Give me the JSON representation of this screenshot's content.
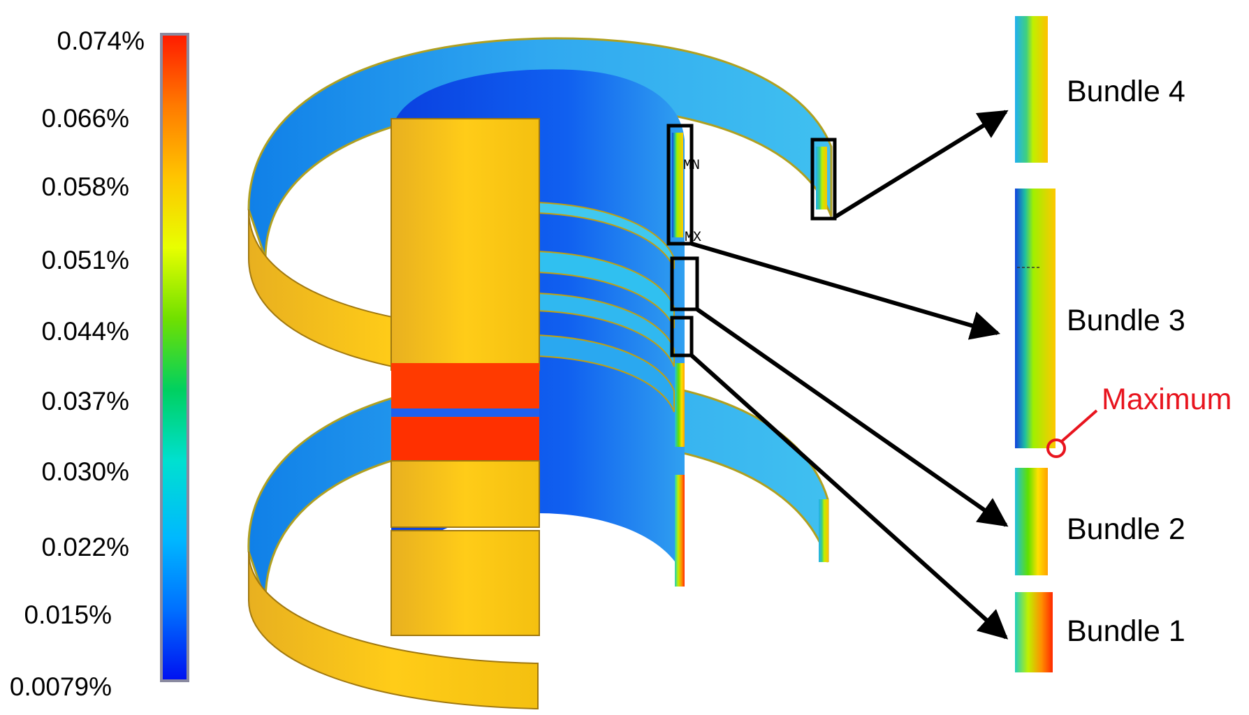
{
  "colorbar": {
    "ticks": [
      "0.074%",
      "0.066%",
      "0.058%",
      "0.051%",
      "0.044%",
      "0.037%",
      "0.030%",
      "0.022%",
      "0.015%",
      "0.0079%"
    ],
    "colors": [
      "#ff1a00",
      "#ff7a00",
      "#ffd000",
      "#e0ff00",
      "#60e000",
      "#00d070",
      "#00e8e8",
      "#00b0ff",
      "#0060ff",
      "#0010f0"
    ]
  },
  "model": {
    "marker_min": "MN",
    "marker_max": "MX"
  },
  "bundles": [
    {
      "label": "Bundle 4"
    },
    {
      "label": "Bundle 3"
    },
    {
      "label": "Bundle 2"
    },
    {
      "label": "Bundle 1"
    }
  ],
  "maximum": {
    "label": "Maximum",
    "color": "#e8141e"
  }
}
